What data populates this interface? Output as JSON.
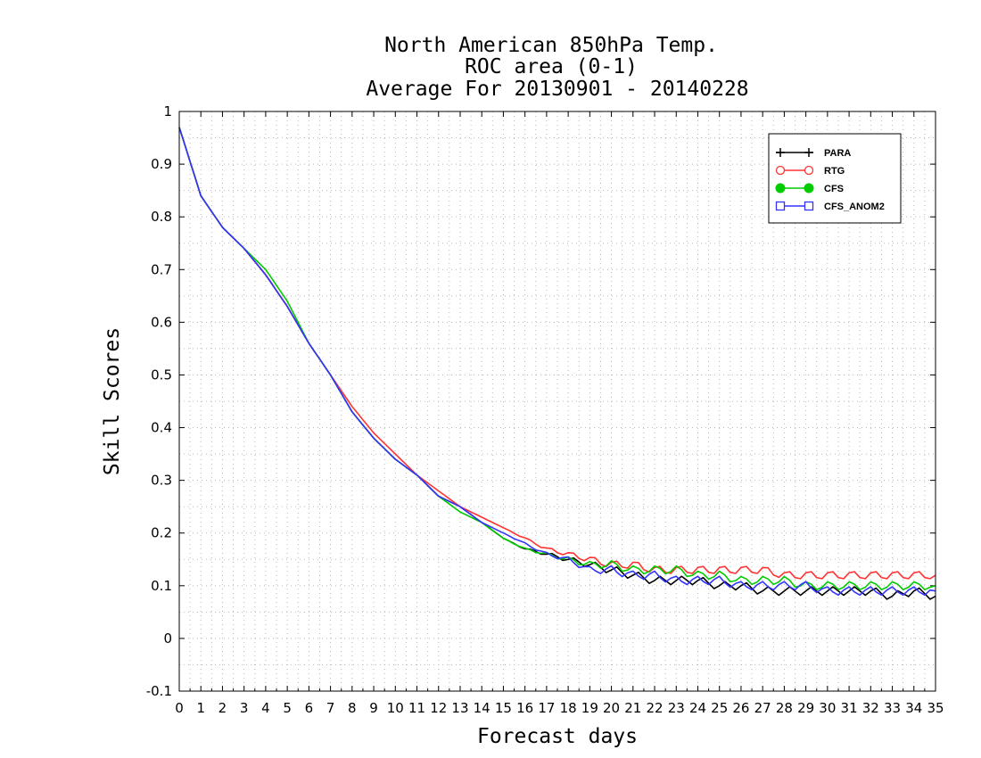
{
  "chart_data": {
    "type": "line",
    "title": [
      "North American 850hPa Temp.",
      "ROC area (0-1)",
      "Average For 20130901 - 20140228"
    ],
    "xlabel": "Forecast days",
    "ylabel": "Skill Scores",
    "xlim": [
      0,
      35
    ],
    "ylim": [
      -0.1,
      1
    ],
    "x_ticks": [
      0,
      1,
      2,
      3,
      4,
      5,
      6,
      7,
      8,
      9,
      10,
      11,
      12,
      13,
      14,
      15,
      16,
      17,
      18,
      19,
      20,
      21,
      22,
      23,
      24,
      25,
      26,
      27,
      28,
      29,
      30,
      31,
      32,
      33,
      34,
      35
    ],
    "x_tick_labels": [
      "0",
      "1",
      "2",
      "3",
      "4",
      "5",
      "6",
      "7",
      "8",
      "9",
      "10",
      "11",
      "12",
      "13",
      "14",
      "15",
      "16",
      "17",
      "18",
      "19",
      "20",
      "21",
      "22",
      "23",
      "24",
      "25",
      "26",
      "27",
      "28",
      "29",
      "30",
      "31",
      "32",
      "33",
      "34",
      "35"
    ],
    "y_ticks": [
      -0.1,
      0,
      0.1,
      0.2,
      0.3,
      0.4,
      0.5,
      0.6,
      0.7,
      0.8,
      0.9,
      1
    ],
    "y_tick_labels": [
      "-0.1",
      "0",
      "0.1",
      "0.2",
      "0.3",
      "0.4",
      "0.5",
      "0.6",
      "0.7",
      "0.8",
      "0.9",
      "1"
    ],
    "grid": true,
    "legend_position": "top-right",
    "x": [
      0,
      1,
      2,
      3,
      4,
      5,
      6,
      7,
      8,
      9,
      10,
      11,
      12,
      13,
      14,
      15,
      16,
      17,
      18,
      19,
      20,
      21,
      22,
      23,
      24,
      25,
      26,
      27,
      28,
      29,
      30,
      31,
      32,
      33,
      34,
      35
    ],
    "series": [
      {
        "name": "PARA",
        "color": "#000000",
        "marker": "plus",
        "values": [
          0.97,
          0.84,
          0.78,
          0.74,
          0.69,
          0.63,
          0.56,
          0.5,
          0.43,
          0.38,
          0.34,
          0.31,
          0.27,
          0.25,
          0.22,
          0.19,
          0.17,
          0.16,
          0.15,
          0.14,
          0.13,
          0.12,
          0.11,
          0.11,
          0.11,
          0.1,
          0.1,
          0.09,
          0.09,
          0.09,
          0.09,
          0.09,
          0.09,
          0.08,
          0.09,
          0.08
        ]
      },
      {
        "name": "RTG",
        "color": "#ff3333",
        "marker": "open-circle",
        "values": [
          0.97,
          0.84,
          0.78,
          0.74,
          0.69,
          0.63,
          0.56,
          0.5,
          0.44,
          0.39,
          0.35,
          0.31,
          0.28,
          0.25,
          0.23,
          0.21,
          0.19,
          0.17,
          0.16,
          0.15,
          0.14,
          0.14,
          0.13,
          0.13,
          0.13,
          0.13,
          0.13,
          0.13,
          0.12,
          0.12,
          0.12,
          0.12,
          0.12,
          0.12,
          0.12,
          0.12
        ]
      },
      {
        "name": "CFS",
        "color": "#00cc00",
        "marker": "filled-circle",
        "values": [
          0.97,
          0.84,
          0.78,
          0.74,
          0.7,
          0.64,
          0.56,
          0.5,
          0.43,
          0.38,
          0.34,
          0.31,
          0.27,
          0.24,
          0.22,
          0.19,
          0.17,
          0.16,
          0.15,
          0.14,
          0.14,
          0.13,
          0.13,
          0.13,
          0.12,
          0.12,
          0.11,
          0.11,
          0.11,
          0.1,
          0.1,
          0.1,
          0.1,
          0.1,
          0.1,
          0.1
        ]
      },
      {
        "name": "CFS_ANOM2",
        "color": "#3333ff",
        "marker": "open-square",
        "values": [
          0.97,
          0.84,
          0.78,
          0.74,
          0.69,
          0.63,
          0.56,
          0.5,
          0.43,
          0.38,
          0.34,
          0.31,
          0.27,
          0.25,
          0.22,
          0.2,
          0.18,
          0.16,
          0.15,
          0.13,
          0.13,
          0.12,
          0.12,
          0.11,
          0.11,
          0.11,
          0.1,
          0.1,
          0.1,
          0.1,
          0.09,
          0.09,
          0.09,
          0.09,
          0.09,
          0.09
        ]
      }
    ]
  }
}
